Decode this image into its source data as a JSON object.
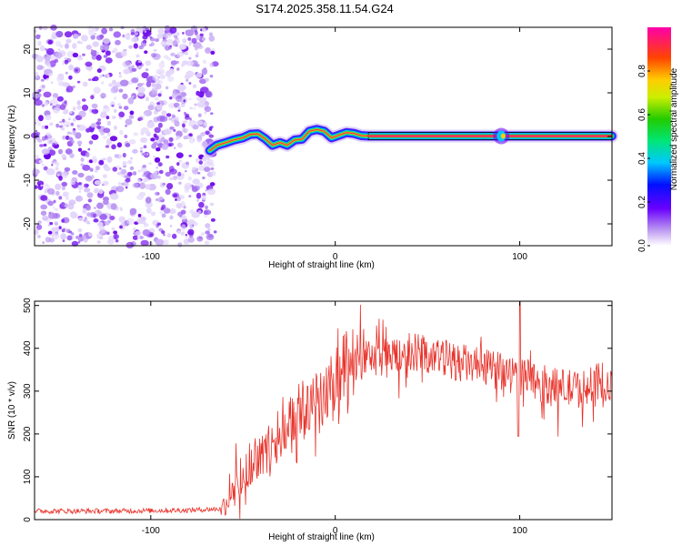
{
  "title": "S174.2025.358.11.54.G24",
  "chart_data": [
    {
      "type": "heatmap",
      "name": "spectrogram",
      "xlabel": "Height of straight line (km)",
      "ylabel": "Frequency (Hz)",
      "xlim": [
        -163,
        150
      ],
      "ylim": [
        -25,
        25
      ],
      "xticks": [
        -100,
        0,
        100
      ],
      "yticks": [
        -20,
        -10,
        0,
        10,
        20
      ],
      "noise_region_x": [
        -163,
        -65
      ],
      "signal_track": {
        "x": [
          -68,
          -64,
          -60,
          -55,
          -50,
          -46,
          -42,
          -38,
          -34,
          -30,
          -26,
          -22,
          -18,
          -14,
          -10,
          -6,
          -2,
          2,
          6,
          10,
          14,
          18,
          85,
          92,
          150
        ],
        "y": [
          -3.2,
          -2.0,
          -1.5,
          -0.8,
          -0.3,
          0.5,
          0.6,
          -0.5,
          -2.0,
          -1.4,
          -2.0,
          -0.8,
          -0.6,
          1.2,
          1.6,
          1.2,
          -0.3,
          0.3,
          0.9,
          0.7,
          0.2,
          0.1,
          0.1,
          0.1,
          0.1
        ]
      },
      "colorbar": {
        "label": "Normalized spectral amplitude",
        "range": [
          0,
          1
        ],
        "ticks": [
          0.0,
          0.2,
          0.4,
          0.6,
          0.8
        ],
        "tick_labels": [
          "0.0",
          "0.2",
          "0.4",
          "0.6",
          "0.8"
        ]
      }
    },
    {
      "type": "line",
      "name": "snr",
      "xlabel": "Height of straight line (km)",
      "ylabel": "SNR (10 * v/v)",
      "xlim": [
        -163,
        150
      ],
      "ylim": [
        0,
        510
      ],
      "xticks": [
        -100,
        0,
        100
      ],
      "yticks": [
        0,
        100,
        200,
        300,
        400,
        500
      ],
      "color": "#e8322a",
      "envelope": {
        "x": [
          -163,
          -120,
          -80,
          -62,
          -55,
          -50,
          -45,
          -40,
          -35,
          -30,
          -25,
          -20,
          -15,
          -10,
          -5,
          0,
          5,
          10,
          15,
          20,
          30,
          40,
          50,
          60,
          70,
          80,
          90,
          95,
          100,
          105,
          110,
          120,
          130,
          140,
          150
        ],
        "y": [
          20,
          20,
          22,
          25,
          60,
          100,
          130,
          150,
          170,
          200,
          220,
          240,
          260,
          280,
          300,
          300,
          330,
          360,
          370,
          380,
          390,
          395,
          385,
          375,
          365,
          355,
          345,
          340,
          335,
          330,
          320,
          310,
          305,
          305,
          305
        ]
      },
      "peak": {
        "x": 100,
        "y": 510
      }
    }
  ]
}
